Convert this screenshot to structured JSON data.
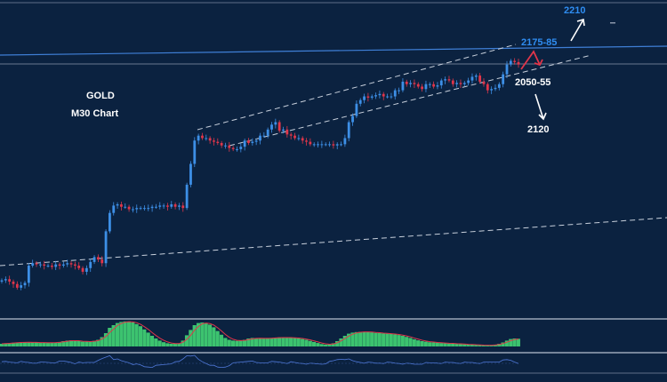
{
  "chart_data": {
    "type": "candlestick",
    "symbol": "GOLD",
    "timeframe": "M30 Chart",
    "price_range": [
      1960,
      2215
    ],
    "colors": {
      "background": "#0b2240",
      "candle_up": "#3d8fe6",
      "candle_down": "#e0364a",
      "trendline": "#c8d0dc",
      "resistance_line": "#3f7fd6",
      "oscillator_bars": "#3cc36f",
      "oscillator_line": "#e0364a",
      "lower_line": "#4f78d8",
      "annotation_blue": "#2f8df2",
      "annotation_white": "#ffffff",
      "arrow_red": "#e0364a"
    },
    "close_series": [
      1990,
      1991,
      1989,
      1987,
      1984,
      1986,
      1988,
      2002,
      2004,
      2003,
      2003,
      2002,
      2002,
      2001,
      2003,
      2002,
      2003,
      2004,
      2003,
      2002,
      2000,
      1997,
      2000,
      2005,
      2009,
      2007,
      2004,
      2030,
      2045,
      2051,
      2052,
      2050,
      2050,
      2048,
      2048,
      2049,
      2049,
      2049,
      2049,
      2050,
      2050,
      2051,
      2051,
      2050,
      2052,
      2050,
      2051,
      2049,
      2068,
      2085,
      2104,
      2108,
      2106,
      2106,
      2104,
      2103,
      2102,
      2100,
      2100,
      2098,
      2097,
      2097,
      2099,
      2104,
      2102,
      2103,
      2104,
      2108,
      2108,
      2113,
      2117,
      2119,
      2112,
      2113,
      2109,
      2108,
      2106,
      2106,
      2104,
      2103,
      2101,
      2101,
      2101,
      2101,
      2101,
      2101,
      2100,
      2101,
      2101,
      2106,
      2119,
      2124,
      2134,
      2137,
      2140,
      2139,
      2140,
      2141,
      2142,
      2140,
      2140,
      2140,
      2145,
      2145,
      2152,
      2150,
      2151,
      2150,
      2148,
      2146,
      2150,
      2150,
      2148,
      2149,
      2153,
      2154,
      2153,
      2150,
      2151,
      2150,
      2151,
      2153,
      2156,
      2157,
      2152,
      2150,
      2145,
      2146,
      2147,
      2150,
      2158,
      2166,
      2169,
      2168,
      2166
    ],
    "oscillator": [
      0.1,
      0.12,
      0.13,
      0.14,
      0.15,
      0.16,
      0.16,
      0.16,
      0.15,
      0.15,
      0.14,
      0.14,
      0.14,
      0.14,
      0.15,
      0.17,
      0.2,
      0.22,
      0.23,
      0.21,
      0.2,
      0.18,
      0.18,
      0.19,
      0.21,
      0.25,
      0.35,
      0.5,
      0.7,
      0.8,
      0.88,
      0.92,
      0.94,
      0.94,
      0.9,
      0.84,
      0.76,
      0.64,
      0.52,
      0.4,
      0.3,
      0.22,
      0.16,
      0.12,
      0.1,
      0.1,
      0.12,
      0.22,
      0.42,
      0.62,
      0.8,
      0.88,
      0.9,
      0.88,
      0.82,
      0.72,
      0.58,
      0.44,
      0.32,
      0.25,
      0.22,
      0.21,
      0.22,
      0.25,
      0.3,
      0.32,
      0.31,
      0.3,
      0.3,
      0.31,
      0.32,
      0.33,
      0.34,
      0.34,
      0.33,
      0.33,
      0.32,
      0.3,
      0.28,
      0.25,
      0.21,
      0.17,
      0.13,
      0.09,
      0.07,
      0.08,
      0.12,
      0.2,
      0.3,
      0.4,
      0.48,
      0.52,
      0.54,
      0.55,
      0.55,
      0.54,
      0.53,
      0.51,
      0.5,
      0.49,
      0.48,
      0.47,
      0.45,
      0.43,
      0.4,
      0.36,
      0.32,
      0.27,
      0.23,
      0.2,
      0.18,
      0.16,
      0.15,
      0.14,
      0.13,
      0.12,
      0.11,
      0.11,
      0.1,
      0.09,
      0.08,
      0.07,
      0.07,
      0.06,
      0.05,
      0.04,
      0.04,
      0.05,
      0.07,
      0.1,
      0.15,
      0.22,
      0.28,
      0.3,
      0.29
    ],
    "resistance_level": 2175,
    "support_lines": [
      {
        "start": [
          0,
          1970
        ],
        "end": [
          185,
          2036
        ]
      }
    ],
    "channel": {
      "upper": {
        "start": [
          50,
          2110
        ],
        "end": [
          147,
          2183
        ]
      },
      "lower": {
        "start": [
          57,
          2096
        ],
        "end": [
          147,
          2161
        ]
      }
    },
    "annotations": [
      {
        "text": "2210",
        "target": 2210,
        "color": "annotation_blue",
        "direction": "up"
      },
      {
        "text": "2175-85",
        "target": 2180,
        "color": "annotation_blue",
        "direction": "none"
      },
      {
        "text": "2050-55",
        "target": 2052,
        "color": "annotation_white",
        "direction": "none"
      },
      {
        "text": "2120",
        "target": 2120,
        "color": "annotation_white",
        "direction": "down"
      }
    ]
  }
}
